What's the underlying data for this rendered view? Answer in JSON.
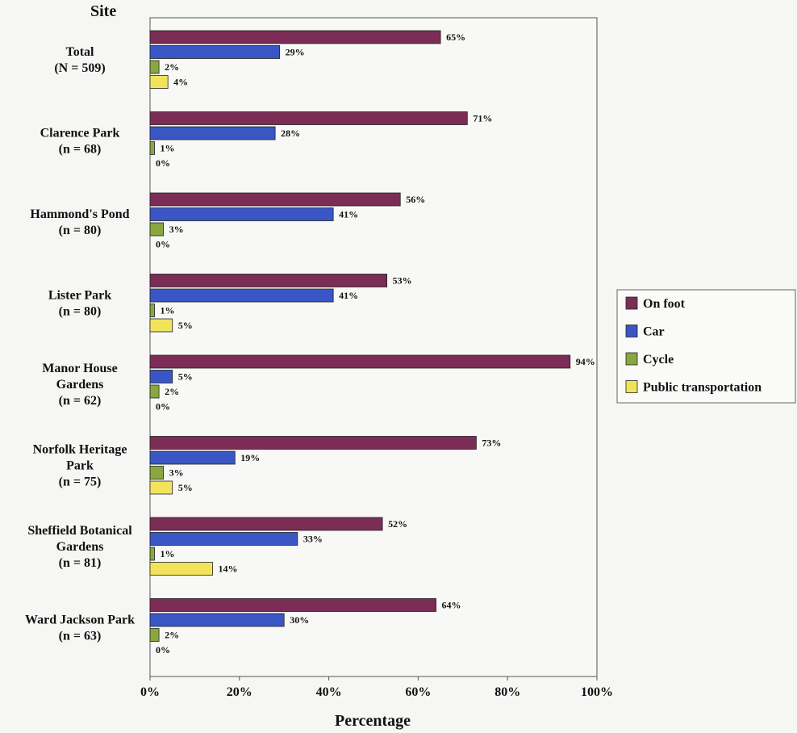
{
  "chart_data": {
    "type": "bar",
    "orientation": "horizontal",
    "ylabel": "Site",
    "xlabel": "Percentage",
    "xlim": [
      0,
      100
    ],
    "xticks": [
      "0%",
      "20%",
      "40%",
      "60%",
      "80%",
      "100%"
    ],
    "grid": false,
    "legend_position": "right",
    "categories": [
      [
        "Total",
        "(N = 509)"
      ],
      [
        "Clarence Park",
        "(n = 68)"
      ],
      [
        "Hammond's Pond",
        "(n = 80)"
      ],
      [
        "Lister Park",
        "(n = 80)"
      ],
      [
        "Manor House",
        "Gardens",
        "(n = 62)"
      ],
      [
        "Norfolk Heritage",
        "Park",
        "(n = 75)"
      ],
      [
        "Sheffield Botanical",
        "Gardens",
        "(n = 81)"
      ],
      [
        "Ward Jackson Park",
        "(n = 63)"
      ]
    ],
    "series": [
      {
        "name": "On foot",
        "color": "#7b2d56",
        "values": [
          65,
          71,
          56,
          53,
          94,
          73,
          52,
          64
        ]
      },
      {
        "name": "Car",
        "color": "#3a56c4",
        "values": [
          29,
          28,
          41,
          41,
          5,
          19,
          33,
          30
        ]
      },
      {
        "name": "Cycle",
        "color": "#8aa640",
        "values": [
          2,
          1,
          3,
          1,
          2,
          3,
          1,
          2
        ]
      },
      {
        "name": "Public transportation",
        "color": "#f2e45a",
        "values": [
          4,
          0,
          0,
          5,
          0,
          5,
          14,
          0
        ]
      }
    ]
  }
}
